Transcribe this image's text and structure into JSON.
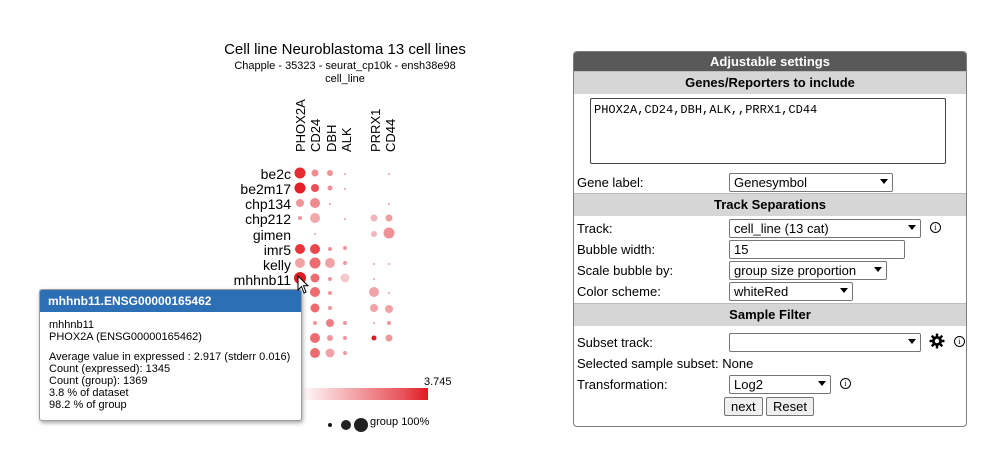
{
  "plot": {
    "title": "Cell line Neuroblastoma 13 cell lines",
    "subtitle": "Chapple - 35323 - seurat_cp10k - ensh38e98",
    "track": "cell_line",
    "genes": [
      "PHOX2A",
      "CD24",
      "DBH",
      "ALK",
      "PRRX1",
      "CD44"
    ],
    "cell_lines": [
      "be2c",
      "be2m17",
      "chp134",
      "chp212",
      "gimen",
      "imr5",
      "kelly",
      "mhhnb11"
    ],
    "color_max": "3.745",
    "size_legend_label": "group 100%",
    "colors": {
      "bubble_max": "#e01b22",
      "bubble_min": "#f3c9cb"
    }
  },
  "tooltip": {
    "title": "mhhnb11.ENSG00000165462",
    "cell_line": "mhhnb11",
    "gene": "PHOX2A (ENSG00000165462)",
    "avg": "Average value in expressed : 2.917 (stderr 0.016)",
    "count_expressed": "Count (expressed): 1345",
    "count_group": "Count (group): 1369",
    "pct_dataset": "3.8 % of dataset",
    "pct_group": "98.2 % of group"
  },
  "settings": {
    "title": "Adjustable settings",
    "genes_section": "Genes/Reporters to include",
    "genes_value": "PHOX2A,CD24,DBH,ALK,,PRRX1,CD44",
    "gene_label": {
      "label": "Gene label:",
      "value": "Genesymbol"
    },
    "track_section": "Track Separations",
    "track": {
      "label": "Track:",
      "value": "cell_line (13 cat)"
    },
    "bubble_width": {
      "label": "Bubble width:",
      "value": "15"
    },
    "scale_by": {
      "label": "Scale bubble by:",
      "value": "group size proportion"
    },
    "color_scheme": {
      "label": "Color scheme:",
      "value": "whiteRed"
    },
    "sample_section": "Sample Filter",
    "subset_track": {
      "label": "Subset track:",
      "value": ""
    },
    "selected_subset": "Selected sample subset: None",
    "transformation": {
      "label": "Transformation:",
      "value": "Log2"
    },
    "next_label": "next",
    "reset_label": "Reset",
    "info_glyph": "i"
  }
}
